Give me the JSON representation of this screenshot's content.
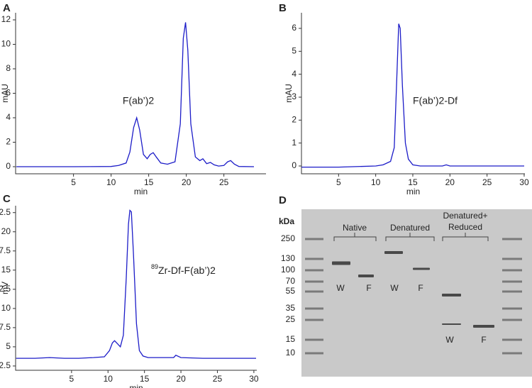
{
  "chart_data": [
    {
      "panel": "A",
      "type": "line",
      "xlabel": "min",
      "ylabel": "mAU",
      "annotation": "F(ab’)2",
      "color": "#1c1cc8",
      "xlim": [
        -2.7,
        30.6
      ],
      "ylim": [
        -0.58,
        12.58
      ],
      "xticks": [
        5,
        10,
        15,
        20,
        25
      ],
      "yticks": [
        0,
        2,
        4,
        6,
        8,
        10,
        12
      ],
      "x": [
        -2.6,
        0,
        5,
        10,
        11,
        12,
        12.5,
        13,
        13.4,
        13.8,
        14.3,
        14.8,
        15.2,
        15.6,
        16,
        16.6,
        17.5,
        18.5,
        19.2,
        19.6,
        19.9,
        20.2,
        20.6,
        21.2,
        21.8,
        22.2,
        22.7,
        23.2,
        23.7,
        24.3,
        25,
        25.5,
        25.9,
        26.4,
        27,
        29
      ],
      "values": [
        0,
        0,
        0,
        0.02,
        0.1,
        0.3,
        1.2,
        3.2,
        4.0,
        3.0,
        1.0,
        0.65,
        1.0,
        1.15,
        0.8,
        0.3,
        0.2,
        0.4,
        3.5,
        10.5,
        11.8,
        9.5,
        3.5,
        0.8,
        0.5,
        0.65,
        0.25,
        0.35,
        0.15,
        0.05,
        0.1,
        0.4,
        0.5,
        0.2,
        0.02,
        0
      ]
    },
    {
      "panel": "B",
      "type": "line",
      "xlabel": "min",
      "ylabel": "mAU",
      "annotation": "F(ab’)2-Df",
      "color": "#1c1cc8",
      "xlim": [
        0,
        30.1
      ],
      "ylim": [
        -0.34,
        6.68
      ],
      "xticks": [
        5,
        10,
        15,
        20,
        25,
        30
      ],
      "yticks": [
        0,
        1,
        2,
        3,
        4,
        5,
        6
      ],
      "x": [
        0,
        5,
        10,
        11,
        12,
        12.5,
        12.8,
        13.1,
        13.3,
        13.6,
        14,
        14.4,
        15,
        16,
        18,
        19,
        19.5,
        20,
        25,
        30
      ],
      "values": [
        -0.05,
        -0.05,
        0,
        0.05,
        0.2,
        0.8,
        3.5,
        6.2,
        6.0,
        3.5,
        1.0,
        0.3,
        0.05,
        0,
        0,
        0,
        0.05,
        0,
        0,
        0
      ]
    },
    {
      "panel": "C",
      "type": "line",
      "xlabel": "min",
      "ylabel": "mV",
      "annotation_sup": "89",
      "annotation": "Zr-Df-F(ab’)2",
      "color": "#1c1cc8",
      "xlim": [
        -2.67,
        30.4
      ],
      "ylim": [
        1.94,
        23.4
      ],
      "xticks": [
        5,
        10,
        15,
        20,
        25,
        30
      ],
      "yticks": [
        2.5,
        5,
        7.5,
        10,
        12.5,
        15,
        17.5,
        20,
        22.5
      ],
      "x": [
        -2.6,
        0,
        2,
        4,
        6,
        8,
        9.5,
        10.2,
        10.6,
        10.9,
        11.3,
        11.7,
        12.1,
        12.5,
        12.8,
        13.0,
        13.2,
        13.5,
        13.9,
        14.3,
        14.8,
        15.5,
        17,
        19,
        19.3,
        20,
        23,
        26,
        30.3
      ],
      "values": [
        3.5,
        3.5,
        3.6,
        3.5,
        3.5,
        3.6,
        3.7,
        4.5,
        5.5,
        5.8,
        5.4,
        5.0,
        6.5,
        14,
        21,
        22.8,
        22.6,
        17,
        8,
        4.5,
        3.8,
        3.6,
        3.6,
        3.6,
        3.9,
        3.6,
        3.5,
        3.5,
        3.5
      ]
    }
  ],
  "gel": {
    "panel": "D",
    "unit_label": "kDa",
    "markers": [
      250,
      130,
      100,
      70,
      55,
      35,
      25,
      15,
      10
    ],
    "groups": [
      "Native",
      "Denatured",
      "Denatured+",
      "Reduced"
    ],
    "lane_labels": [
      "W",
      "F",
      "W",
      "F",
      "W",
      "F"
    ]
  }
}
